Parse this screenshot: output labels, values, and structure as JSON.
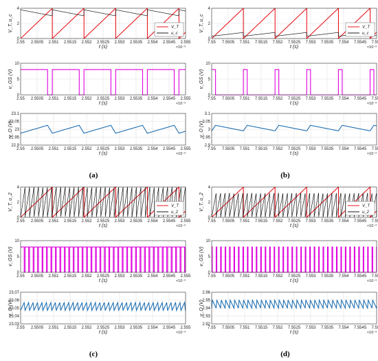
{
  "captions": [
    "(a)",
    "(b)",
    "(c)",
    "(d)"
  ],
  "colors": {
    "red": "#e8141c",
    "black": "#1a1a1a",
    "magenta": "#e000e0",
    "blue": "#1f6fb2",
    "grid": "#dcdcdc"
  },
  "chart_data": [
    {
      "panel": "a-top",
      "type": "line",
      "xlabel": "t (s)",
      "ylabel": "V_T, u_c",
      "xlim": [
        2.55,
        2.555
      ],
      "ylim": [
        0,
        4
      ],
      "xticks": [
        "2.55",
        "2.5505",
        "2.551",
        "2.5515",
        "2.552",
        "2.5525",
        "2.553",
        "2.5535",
        "2.554",
        "2.5545",
        "2.555"
      ],
      "yticks": [
        "0",
        "2",
        "4"
      ],
      "x_exponent": "×10⁻³",
      "legend": [
        "V_T",
        "u_c"
      ],
      "legend_pos": "bottom-right",
      "series": [
        {
          "name": "V_T",
          "kind": "saw",
          "period": 0.00096,
          "x0": 2.55,
          "lo": 0,
          "hi": 4,
          "color": "red"
        },
        {
          "name": "u_c",
          "kind": "decay",
          "period": 0.00096,
          "x0": 2.55,
          "lo": 3.0,
          "hi": 3.8,
          "color": "black"
        }
      ]
    },
    {
      "panel": "a-mid",
      "type": "line",
      "xlabel": "t (s)",
      "ylabel": "v_GS (V)",
      "xlim": [
        2.55,
        2.555
      ],
      "ylim": [
        0,
        10
      ],
      "xticks": [
        "2.55",
        "2.5505",
        "2.551",
        "2.5515",
        "2.552",
        "2.5525",
        "2.553",
        "2.5535",
        "2.554",
        "2.5545",
        "2.555"
      ],
      "yticks": [
        "0",
        "5",
        "10"
      ],
      "x_exponent": "×10⁻³",
      "series": [
        {
          "name": "v_GS",
          "kind": "pulse",
          "period": 0.00096,
          "x0": 2.55,
          "duty": 0.85,
          "hi": 8,
          "lo": 0,
          "color": "magenta"
        }
      ]
    },
    {
      "panel": "a-bot",
      "type": "line",
      "xlabel": "t (s)",
      "ylabel": "v_O (V)",
      "xlim": [
        2.55,
        2.555
      ],
      "ylim": [
        22.9,
        23.1
      ],
      "xticks": [
        "2.55",
        "2.5505",
        "2.551",
        "2.5515",
        "2.552",
        "2.5525",
        "2.553",
        "2.5535",
        "2.554",
        "2.5545",
        "2.555"
      ],
      "yticks": [
        "22.9",
        "22.95",
        "23",
        "23.05",
        "23.1"
      ],
      "x_exponent": "×10⁻³",
      "series": [
        {
          "name": "v_O",
          "kind": "ripple",
          "period": 0.00096,
          "x0": 2.55,
          "lo": 22.975,
          "hi": 23.025,
          "rise": 0.85,
          "color": "blue"
        }
      ]
    },
    {
      "panel": "b-top",
      "type": "line",
      "xlabel": "t (s)",
      "ylabel": "V_T, u_c",
      "xlim": [
        7.55,
        7.555
      ],
      "ylim": [
        0,
        4
      ],
      "xticks": [
        "7.55",
        "7.5505",
        "7.551",
        "7.5515",
        "7.552",
        "7.5525",
        "7.553",
        "7.5535",
        "7.554",
        "7.5545",
        "7.555"
      ],
      "yticks": [
        "0",
        "2",
        "4"
      ],
      "x_exponent": "×10⁻³",
      "legend": [
        "V_T",
        "u_c"
      ],
      "legend_pos": "bottom-right",
      "series": [
        {
          "name": "V_T",
          "kind": "saw",
          "period": 0.00096,
          "x0": 7.55,
          "lo": 0,
          "hi": 4,
          "color": "red"
        },
        {
          "name": "u_c",
          "kind": "rampslow",
          "period": 0.00096,
          "x0": 7.55,
          "lo": 0.3,
          "hi": 0.8,
          "color": "black"
        }
      ]
    },
    {
      "panel": "b-mid",
      "type": "line",
      "xlabel": "t (s)",
      "ylabel": "v_GS (V)",
      "xlim": [
        7.55,
        7.555
      ],
      "ylim": [
        0,
        10
      ],
      "xticks": [
        "7.55",
        "7.5505",
        "7.551",
        "7.5515",
        "7.552",
        "7.5525",
        "7.553",
        "7.5535",
        "7.554",
        "7.5545",
        "7.555"
      ],
      "yticks": [
        "0",
        "5",
        "10"
      ],
      "x_exponent": "×10⁻³",
      "series": [
        {
          "name": "v_GS",
          "kind": "pulse",
          "period": 0.00096,
          "x0": 7.55,
          "duty": 0.12,
          "hi": 8,
          "lo": 0,
          "color": "magenta"
        }
      ]
    },
    {
      "panel": "b-bot",
      "type": "line",
      "xlabel": "t (s)",
      "ylabel": "v_O (V)",
      "xlim": [
        7.55,
        7.555
      ],
      "ylim": [
        2.9,
        3.1
      ],
      "xticks": [
        "7.55",
        "7.5505",
        "7.551",
        "7.5515",
        "7.552",
        "7.5525",
        "7.553",
        "7.5535",
        "7.554",
        "7.5545",
        "7.555"
      ],
      "yticks": [
        "2.9",
        "2.95",
        "3",
        "3.05",
        "3.1"
      ],
      "x_exponent": "×10⁻³",
      "series": [
        {
          "name": "v_O",
          "kind": "ripple",
          "period": 0.00096,
          "x0": 7.55,
          "lo": 2.99,
          "hi": 3.025,
          "rise": 0.12,
          "color": "blue"
        }
      ]
    },
    {
      "panel": "c-top",
      "type": "line",
      "xlabel": "t (s)",
      "ylabel": "V_T, u_2",
      "xlim": [
        2.55,
        2.555
      ],
      "ylim": [
        0,
        4
      ],
      "xticks": [
        "2.55",
        "2.5505",
        "2.551",
        "2.5515",
        "2.552",
        "2.5525",
        "2.553",
        "2.5535",
        "2.554",
        "2.5545",
        "2.555"
      ],
      "yticks": [
        "0",
        "2",
        "4"
      ],
      "x_exponent": "×10⁻³",
      "legend": [
        "V_T",
        "u_2"
      ],
      "legend_pos": "bottom-right",
      "series": [
        {
          "name": "V_T",
          "kind": "saw",
          "period": 0.00096,
          "x0": 2.55,
          "lo": 0,
          "hi": 4,
          "color": "red"
        },
        {
          "name": "u_2",
          "kind": "saw",
          "period": 0.000135,
          "x0": 2.55,
          "lo": 0,
          "hi": 4,
          "color": "black"
        }
      ]
    },
    {
      "panel": "c-mid",
      "type": "line",
      "xlabel": "t (s)",
      "ylabel": "v_GS (V)",
      "xlim": [
        2.55,
        2.555
      ],
      "ylim": [
        0,
        10
      ],
      "xticks": [
        "2.55",
        "2.5505",
        "2.551",
        "2.5515",
        "2.552",
        "2.5525",
        "2.553",
        "2.5535",
        "2.554",
        "2.5545",
        "2.555"
      ],
      "yticks": [
        "0",
        "5",
        "10"
      ],
      "x_exponent": "×10⁻³",
      "series": [
        {
          "name": "v_GS",
          "kind": "pulse",
          "period": 0.000135,
          "x0": 2.55,
          "duty": 0.8,
          "hi": 8,
          "lo": 0,
          "color": "magenta"
        }
      ]
    },
    {
      "panel": "c-bot",
      "type": "line",
      "xlabel": "t (s)",
      "ylabel": "v_O (V)",
      "xlim": [
        2.55,
        2.555
      ],
      "ylim": [
        23.03,
        23.07
      ],
      "xticks": [
        "2.55",
        "2.5505",
        "2.551",
        "2.5515",
        "2.552",
        "2.5525",
        "2.553",
        "2.5535",
        "2.554",
        "2.5545",
        "2.555"
      ],
      "yticks": [
        "23.03",
        "23.04",
        "23.05",
        "23.06",
        "23.07"
      ],
      "x_exponent": "×10⁻³",
      "series": [
        {
          "name": "v_O",
          "kind": "ripple",
          "period": 0.000135,
          "x0": 2.55,
          "lo": 23.047,
          "hi": 23.057,
          "rise": 0.8,
          "color": "blue"
        }
      ]
    },
    {
      "panel": "d-top",
      "type": "line",
      "xlabel": "t (s)",
      "ylabel": "V_T, u_2",
      "xlim": [
        7.55,
        7.555
      ],
      "ylim": [
        0,
        4
      ],
      "xticks": [
        "7.55",
        "7.5505",
        "7.551",
        "7.5515",
        "7.552",
        "7.5525",
        "7.553",
        "7.5535",
        "7.554",
        "7.5545",
        "7.555"
      ],
      "yticks": [
        "0",
        "2",
        "4"
      ],
      "x_exponent": "×10⁻³",
      "legend": [
        "V_T",
        "u_2"
      ],
      "legend_pos": "bottom-right",
      "series": [
        {
          "name": "V_T",
          "kind": "saw",
          "period": 0.00096,
          "x0": 7.55,
          "lo": 0,
          "hi": 4,
          "color": "red"
        },
        {
          "name": "u_2",
          "kind": "saw",
          "period": 0.000135,
          "x0": 7.55,
          "lo": 0,
          "hi": 3.2,
          "color": "black"
        }
      ]
    },
    {
      "panel": "d-mid",
      "type": "line",
      "xlabel": "t (s)",
      "ylabel": "v_GS (V)",
      "xlim": [
        7.55,
        7.555
      ],
      "ylim": [
        0,
        10
      ],
      "xticks": [
        "7.55",
        "7.5505",
        "7.551",
        "7.5515",
        "7.552",
        "7.5525",
        "7.553",
        "7.5535",
        "7.554",
        "7.5545",
        "7.555"
      ],
      "yticks": [
        "0",
        "5",
        "10"
      ],
      "x_exponent": "×10⁻³",
      "series": [
        {
          "name": "v_GS",
          "kind": "pulse",
          "period": 0.000135,
          "x0": 7.55,
          "duty": 0.15,
          "hi": 8,
          "lo": 0,
          "color": "magenta"
        }
      ]
    },
    {
      "panel": "d-bot",
      "type": "line",
      "xlabel": "t (s)",
      "ylabel": "v_O (V)",
      "xlim": [
        7.55,
        7.555
      ],
      "ylim": [
        2.92,
        2.96
      ],
      "xticks": [
        "7.55",
        "7.5505",
        "7.551",
        "7.5515",
        "7.552",
        "7.5525",
        "7.553",
        "7.5535",
        "7.554",
        "7.5545",
        "7.555"
      ],
      "yticks": [
        "2.92",
        "2.93",
        "2.94",
        "2.95",
        "2.96"
      ],
      "x_exponent": "×10⁻³",
      "series": [
        {
          "name": "v_O",
          "kind": "ripple",
          "period": 0.000135,
          "x0": 7.55,
          "lo": 2.94,
          "hi": 2.95,
          "rise": 0.15,
          "color": "blue"
        }
      ]
    }
  ]
}
